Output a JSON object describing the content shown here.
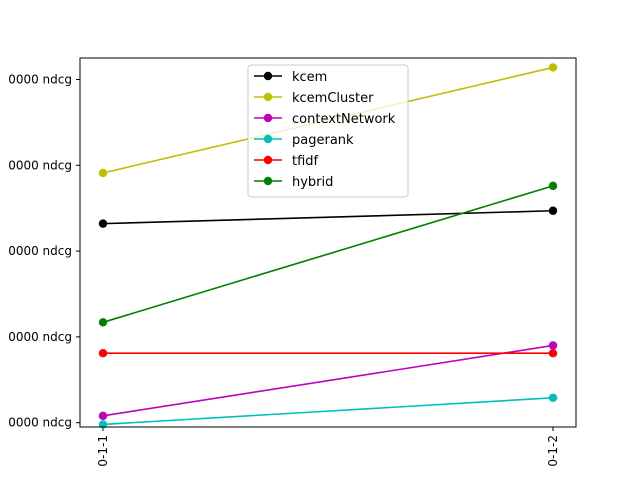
{
  "chart_data": {
    "type": "line",
    "title": "",
    "xlabel": "",
    "ylabel": "",
    "categories": [
      "0-1-1",
      "0-1-2"
    ],
    "y_tick_labels": [
      "0000 ndcg",
      "0000 ndcg",
      "0000 ndcg",
      "0000 ndcg",
      "0000 ndcg"
    ],
    "y_tick_values": [
      0,
      1,
      2,
      3,
      4
    ],
    "ylim": [
      -0.05,
      4.25
    ],
    "grid": false,
    "legend_position": "top-center",
    "series": [
      {
        "name": "kcem",
        "color": "#000000",
        "values": [
          2.32,
          2.47
        ]
      },
      {
        "name": "kcemCluster",
        "color": "#bfbf00",
        "values": [
          2.91,
          4.14
        ]
      },
      {
        "name": "contextNetwork",
        "color": "#bf00bf",
        "values": [
          0.08,
          0.9
        ]
      },
      {
        "name": "pagerank",
        "color": "#00bfbf",
        "values": [
          -0.02,
          0.29
        ]
      },
      {
        "name": "tfidf",
        "color": "#ff0000",
        "values": [
          0.81,
          0.81
        ]
      },
      {
        "name": "hybrid",
        "color": "#008000",
        "values": [
          1.17,
          2.76
        ]
      }
    ]
  }
}
